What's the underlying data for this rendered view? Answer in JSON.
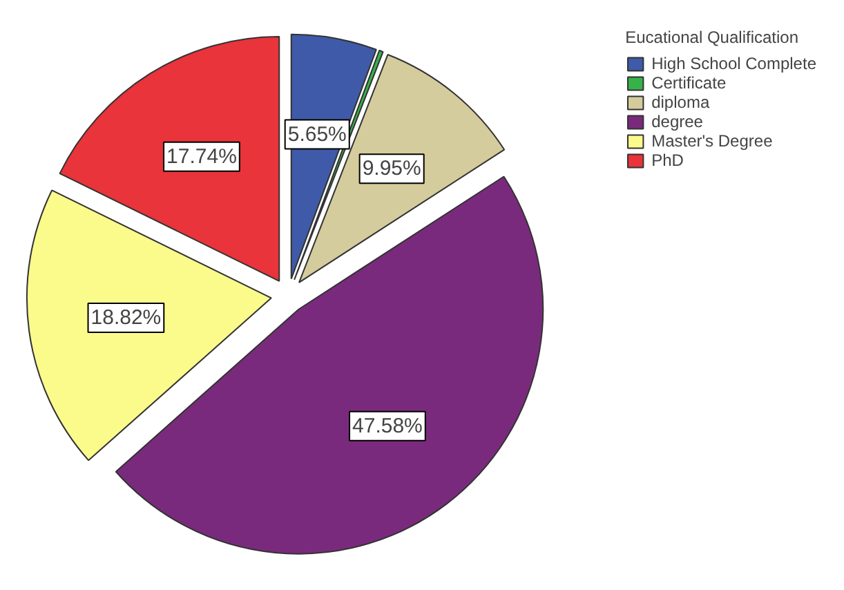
{
  "chart_data": {
    "type": "pie",
    "legend_title": "Eucational Qualification",
    "legend": "top right",
    "categories": [
      "High School Complete",
      "Certificate",
      "diploma",
      "degree",
      "Master's Degree",
      "PhD"
    ],
    "values": [
      5.65,
      0.26,
      9.95,
      47.58,
      18.82,
      17.74
    ],
    "colors": [
      "#3f5aa8",
      "#36b24a",
      "#d4cc9c",
      "#7a2a7c",
      "#fbfb8c",
      "#e8343a"
    ],
    "value_labels": [
      "5.65%",
      null,
      "9.95%",
      "47.58%",
      "18.82%",
      "17.74%"
    ]
  }
}
